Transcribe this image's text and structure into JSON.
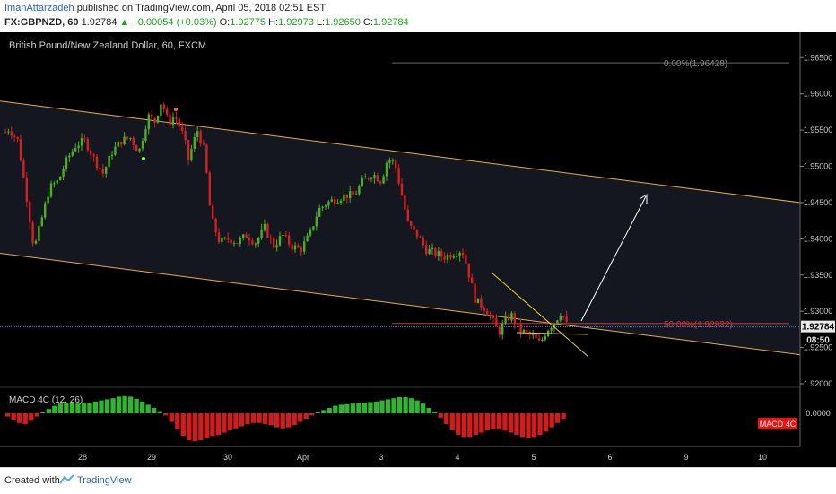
{
  "header": {
    "author": "ImanAttarzadeh",
    "published_text": " published on TradingView.com, April 05, 2018 02:51 EST",
    "symbol": "FX:GBPNZD, 60",
    "last": "1.92784",
    "change": "▲ +0.00054 (+0.03%)",
    "o_label": "O:",
    "o_value": "1.92775",
    "h_label": "H:",
    "h_value": "1.92973",
    "l_label": "L:",
    "l_value": "1.92650",
    "c_label": "C:",
    "c_value": "1.92784"
  },
  "chart": {
    "title": "British Pound/New Zealand Dollar, 60, FXCM",
    "price_label": "1.92784",
    "countdown_label": "08:50",
    "fib_0_label": "0.00%(1.96428)",
    "fib_50_label": "50.00%(1.92832)",
    "indicator_title": "MACD 4C (12, 26)",
    "indicator_badge": "MACD 4C",
    "indicator_zero_label": "0.0000",
    "colors": {
      "background": "#000000",
      "channel_fill": "#151820",
      "channel_line": "#e5ad3f",
      "candle_up": "#4caf1e",
      "candle_down": "#d32020",
      "fib_line": "#c93636",
      "price_line": "#4a7de2",
      "macd_up": "#30b530",
      "macd_down": "#d01c1c",
      "arrow": "#ffffff"
    }
  },
  "chart_data": {
    "type": "candlestick",
    "symbol": "GBPNZD",
    "interval": "60",
    "y_ticks": [
      "1.96500",
      "1.96000",
      "1.95500",
      "1.95000",
      "1.94500",
      "1.94000",
      "1.93500",
      "1.93000",
      "1.92500",
      "1.92000"
    ],
    "ylim": [
      1.9185,
      1.9685
    ],
    "x_ticks": [
      "28",
      "29",
      "30",
      "Apr",
      "3",
      "4",
      "5",
      "6",
      "9",
      "10"
    ],
    "last_price": 1.92784,
    "fibonacci": [
      {
        "level": "0.00%",
        "price": 1.96428
      },
      {
        "level": "50.00%",
        "price": 1.92832
      }
    ],
    "price_anchors": [
      [
        0,
        1.954
      ],
      [
        10,
        1.9552
      ],
      [
        20,
        1.9535
      ],
      [
        30,
        1.9455
      ],
      [
        38,
        1.9385
      ],
      [
        45,
        1.942
      ],
      [
        55,
        1.947
      ],
      [
        65,
        1.948
      ],
      [
        75,
        1.951
      ],
      [
        85,
        1.953
      ],
      [
        95,
        1.9535
      ],
      [
        105,
        1.951
      ],
      [
        115,
        1.949
      ],
      [
        125,
        1.952
      ],
      [
        135,
        1.9535
      ],
      [
        145,
        1.954
      ],
      [
        155,
        1.952
      ],
      [
        165,
        1.957
      ],
      [
        172,
        1.956
      ],
      [
        180,
        1.959
      ],
      [
        188,
        1.956
      ],
      [
        195,
        1.957
      ],
      [
        205,
        1.954
      ],
      [
        210,
        1.951
      ],
      [
        220,
        1.955
      ],
      [
        228,
        1.952
      ],
      [
        235,
        1.943
      ],
      [
        245,
        1.9395
      ],
      [
        255,
        1.94
      ],
      [
        265,
        1.9395
      ],
      [
        275,
        1.9405
      ],
      [
        285,
        1.9395
      ],
      [
        295,
        1.9415
      ],
      [
        305,
        1.939
      ],
      [
        315,
        1.9405
      ],
      [
        325,
        1.939
      ],
      [
        335,
        1.9385
      ],
      [
        345,
        1.9405
      ],
      [
        355,
        1.944
      ],
      [
        365,
        1.945
      ],
      [
        375,
        1.9455
      ],
      [
        385,
        1.946
      ],
      [
        395,
        1.946
      ],
      [
        405,
        1.948
      ],
      [
        415,
        1.949
      ],
      [
        425,
        1.948
      ],
      [
        432,
        1.951
      ],
      [
        440,
        1.9505
      ],
      [
        448,
        1.946
      ],
      [
        455,
        1.942
      ],
      [
        465,
        1.9405
      ],
      [
        475,
        1.9385
      ],
      [
        485,
        1.938
      ],
      [
        495,
        1.9375
      ],
      [
        505,
        1.938
      ],
      [
        515,
        1.9385
      ],
      [
        520,
        1.9365
      ],
      [
        530,
        1.9315
      ],
      [
        540,
        1.9305
      ],
      [
        548,
        1.929
      ],
      [
        556,
        1.927
      ],
      [
        562,
        1.9285
      ],
      [
        570,
        1.9295
      ],
      [
        578,
        1.9275
      ],
      [
        586,
        1.927
      ],
      [
        594,
        1.9265
      ],
      [
        602,
        1.9255
      ],
      [
        610,
        1.9275
      ],
      [
        618,
        1.9285
      ],
      [
        626,
        1.93
      ],
      [
        632,
        1.928
      ]
    ],
    "channel": {
      "upper": [
        [
          "day-28-before",
          1.959
        ],
        [
          "Apr 3",
          1.9525
        ],
        [
          "day-10-after",
          1.945
        ]
      ],
      "lower": [
        [
          "day-28-before",
          1.938
        ],
        [
          "Apr 4",
          1.931
        ],
        [
          "day-10-after",
          1.924
        ]
      ]
    },
    "macd_histogram": [
      -0.3,
      -0.6,
      -0.9,
      -1.0,
      -0.7,
      -0.3,
      0.1,
      0.4,
      0.7,
      0.9,
      1.0,
      0.95,
      0.9,
      0.95,
      1.0,
      1.1,
      1.2,
      1.3,
      1.4,
      1.55,
      1.6,
      1.55,
      1.35,
      1.1,
      0.8,
      0.5,
      0.2,
      -0.2,
      -0.8,
      -1.5,
      -2.1,
      -2.5,
      -2.6,
      -2.5,
      -2.3,
      -2.1,
      -2.0,
      -1.8,
      -1.6,
      -1.4,
      -1.2,
      -1.0,
      -0.9,
      -0.9,
      -1.0,
      -1.1,
      -1.3,
      -1.4,
      -1.3,
      -1.1,
      -0.8,
      -0.5,
      -0.2,
      0.1,
      0.3,
      0.5,
      0.7,
      0.8,
      0.85,
      0.9,
      0.95,
      1.0,
      1.05,
      1.1,
      1.2,
      1.3,
      1.4,
      1.5,
      1.5,
      1.4,
      1.2,
      0.9,
      0.5,
      0.1,
      -0.4,
      -1.0,
      -1.6,
      -2.0,
      -2.2,
      -2.2,
      -2.0,
      -1.8,
      -1.6,
      -1.5,
      -1.5,
      -1.6,
      -1.8,
      -2.0,
      -2.2,
      -2.3,
      -2.2,
      -2.0,
      -1.7,
      -1.3,
      -0.9,
      -0.5
    ]
  }
}
